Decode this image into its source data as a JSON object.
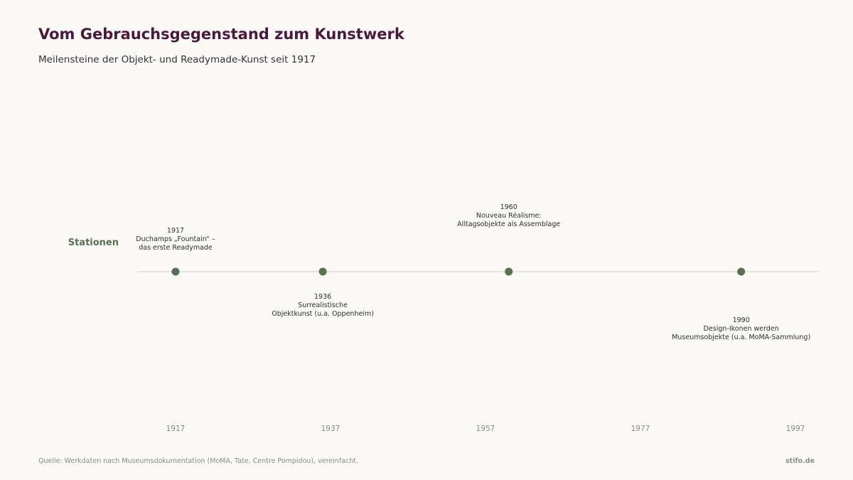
{
  "header": {
    "title": "Vom Gebrauchsgegenstand zum Kunstwerk",
    "subtitle": "Meilensteine der Objekt- und Readymade-Kunst seit 1917"
  },
  "chart_data": {
    "type": "timeline",
    "row_label": "Stationen",
    "xlim": [
      1917,
      1997
    ],
    "xticks": [
      "1917",
      "1937",
      "1957",
      "1977",
      "1997"
    ],
    "events": [
      {
        "year": 1917,
        "lines": [
          "1917",
          "Duchamps „Fountain“ –",
          "das erste Readymade"
        ],
        "position": "above"
      },
      {
        "year": 1936,
        "lines": [
          "1936",
          "Surrealistische",
          "Objektkunst (u.a. Oppenheim)"
        ],
        "position": "below"
      },
      {
        "year": 1960,
        "lines": [
          "1960",
          "Nouveau Réalisme:",
          "Alltagsobjekte als Assemblage"
        ],
        "position": "above"
      },
      {
        "year": 1990,
        "lines": [
          "1990",
          "Design-Ikonen werden",
          "Museumsobjekte (u.a. MoMA-Sammlung)"
        ],
        "position": "below"
      }
    ],
    "colors": {
      "marker": "#5a7052",
      "axis_line": "#dcdcd4",
      "row_label": "#5a7052",
      "event_text": "#2e2e2e",
      "tick_text": "#8a8a8a"
    }
  },
  "footer": {
    "source": "Quelle: Werkdaten nach Museumsdokumentation (MoMA, Tate, Centre Pompidou), vereinfacht.",
    "brand": "stifo.de"
  }
}
